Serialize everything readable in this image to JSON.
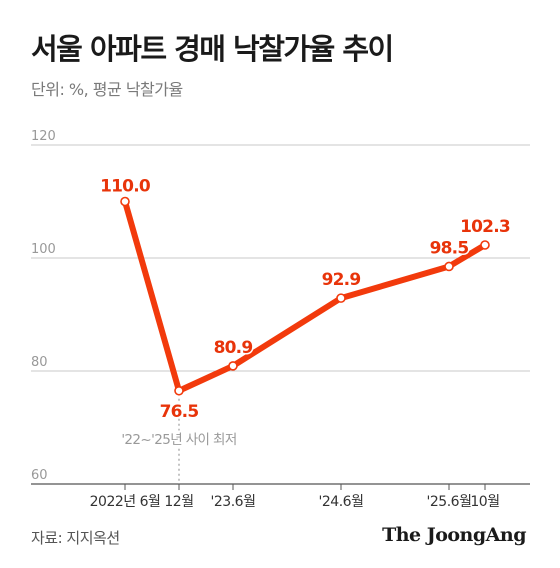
{
  "header": {
    "title": "서울 아파트 경매 낙찰가율 추이",
    "unit_label": "단위: %, 평균 낙찰가율"
  },
  "footer": {
    "source": "자료: 지지옥션",
    "brand": "The JoongAng"
  },
  "annotation": {
    "text": "'22~'25년 사이 최저",
    "category_index": 1
  },
  "colors": {
    "line": "#f23a0c",
    "value_label": "#e8340a",
    "grid": "#c8c8c8",
    "axis_text": "#999999"
  },
  "chart_data": {
    "type": "line",
    "title": "서울 아파트 경매 낙찰가율 추이",
    "xlabel": "",
    "ylabel": "",
    "ylim": [
      60,
      120
    ],
    "yticks": [
      60,
      80,
      100,
      120
    ],
    "grid": true,
    "categories": [
      "2022년 6월",
      "12월",
      "'23.6월",
      "'24.6월",
      "'25.6월",
      "10월"
    ],
    "x_positions": [
      0,
      6,
      12,
      24,
      36,
      40
    ],
    "values": [
      110.0,
      76.5,
      80.9,
      92.9,
      98.5,
      102.3
    ],
    "value_labels": [
      "110.0",
      "76.5",
      "80.9",
      "92.9",
      "98.5",
      "102.3"
    ]
  }
}
